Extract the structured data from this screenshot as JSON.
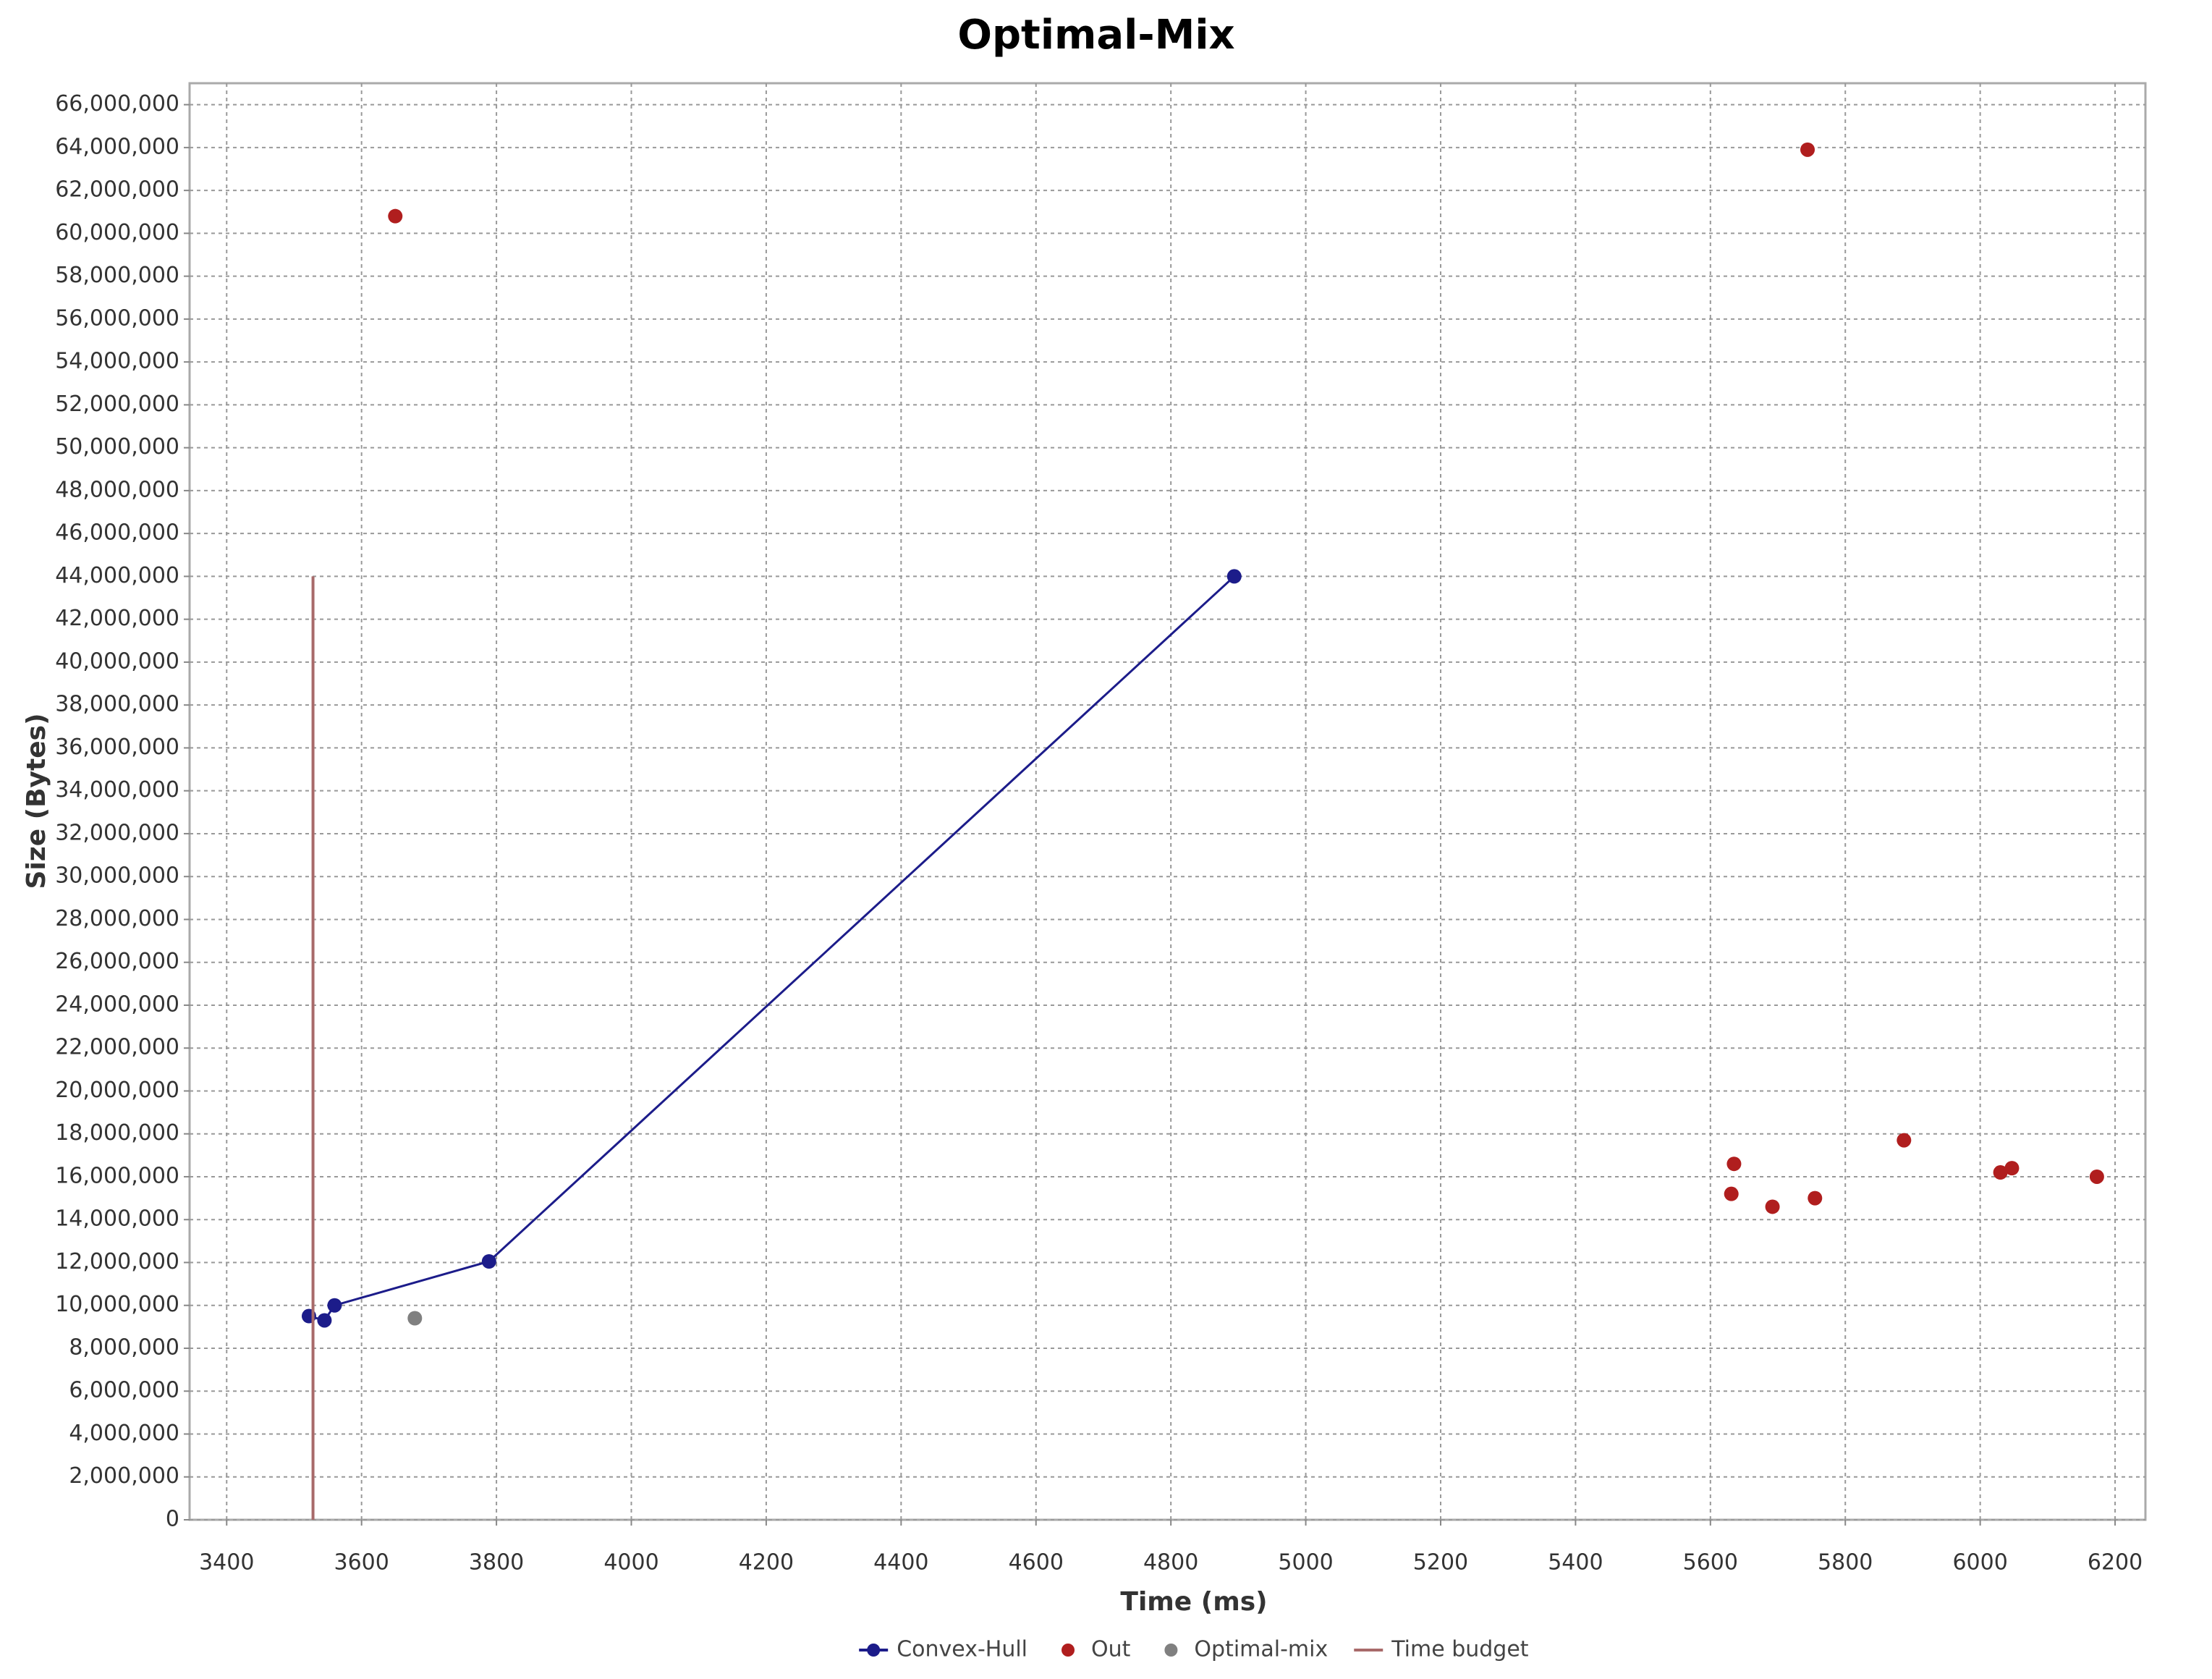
{
  "chart_data": {
    "type": "scatter",
    "title": "Optimal-Mix",
    "xlabel": "Time (ms)",
    "ylabel": "Size (Bytes)",
    "xlim": [
      3345,
      6245
    ],
    "ylim": [
      0,
      67000000
    ],
    "xticks": [
      3400,
      3600,
      3800,
      4000,
      4200,
      4400,
      4600,
      4800,
      5000,
      5200,
      5400,
      5600,
      5800,
      6000,
      6200
    ],
    "yticks": [
      {
        "value": 0,
        "label": "0"
      },
      {
        "value": 2000000,
        "label": "2,000,000"
      },
      {
        "value": 4000000,
        "label": "4,000,000"
      },
      {
        "value": 6000000,
        "label": "6,000,000"
      },
      {
        "value": 8000000,
        "label": "8,000,000"
      },
      {
        "value": 10000000,
        "label": "10,000,000"
      },
      {
        "value": 12000000,
        "label": "12,000,000"
      },
      {
        "value": 14000000,
        "label": "14,000,000"
      },
      {
        "value": 16000000,
        "label": "16,000,000"
      },
      {
        "value": 18000000,
        "label": "18,000,000"
      },
      {
        "value": 20000000,
        "label": "20,000,000"
      },
      {
        "value": 22000000,
        "label": "22,000,000"
      },
      {
        "value": 24000000,
        "label": "24,000,000"
      },
      {
        "value": 26000000,
        "label": "26,000,000"
      },
      {
        "value": 28000000,
        "label": "28,000,000"
      },
      {
        "value": 30000000,
        "label": "30,000,000"
      },
      {
        "value": 32000000,
        "label": "32,000,000"
      },
      {
        "value": 34000000,
        "label": "34,000,000"
      },
      {
        "value": 36000000,
        "label": "36,000,000"
      },
      {
        "value": 38000000,
        "label": "38,000,000"
      },
      {
        "value": 40000000,
        "label": "40,000,000"
      },
      {
        "value": 42000000,
        "label": "42,000,000"
      },
      {
        "value": 44000000,
        "label": "44,000,000"
      },
      {
        "value": 46000000,
        "label": "46,000,000"
      },
      {
        "value": 48000000,
        "label": "48,000,000"
      },
      {
        "value": 50000000,
        "label": "50,000,000"
      },
      {
        "value": 52000000,
        "label": "52,000,000"
      },
      {
        "value": 54000000,
        "label": "54,000,000"
      },
      {
        "value": 56000000,
        "label": "56,000,000"
      },
      {
        "value": 58000000,
        "label": "58,000,000"
      },
      {
        "value": 60000000,
        "label": "60,000,000"
      },
      {
        "value": 62000000,
        "label": "62,000,000"
      },
      {
        "value": 64000000,
        "label": "64,000,000"
      },
      {
        "value": 66000000,
        "label": "66,000,000"
      }
    ],
    "grid": true,
    "legend": "bottom",
    "series": [
      {
        "name": "Convex-Hull",
        "color": "#1c1c8a",
        "mode": "lines+markers",
        "x": [
          3522,
          3545,
          3560,
          3789,
          4894
        ],
        "values": [
          9500000,
          9300000,
          10000000,
          12050000,
          44000000
        ]
      },
      {
        "name": "Out",
        "color": "#b01e1e",
        "mode": "markers",
        "x": [
          3650,
          5744,
          5635,
          5631,
          5692,
          5755,
          5887,
          6030,
          6047,
          6173
        ],
        "values": [
          60800000,
          63900000,
          16600000,
          15200000,
          14600000,
          15000000,
          17700000,
          16200000,
          16400000,
          16000000
        ]
      },
      {
        "name": "Optimal-mix",
        "color": "#808080",
        "mode": "markers",
        "x": [
          3679
        ],
        "values": [
          9400000
        ]
      },
      {
        "name": "Time budget",
        "color": "#a86a6a",
        "mode": "lines",
        "x": [
          3528,
          3528
        ],
        "values": [
          0,
          44000000
        ]
      }
    ]
  }
}
